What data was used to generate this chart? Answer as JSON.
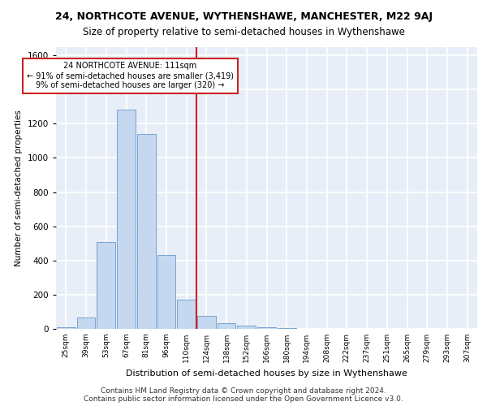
{
  "title1": "24, NORTHCOTE AVENUE, WYTHENSHAWE, MANCHESTER, M22 9AJ",
  "title2": "Size of property relative to semi-detached houses in Wythenshawe",
  "xlabel": "Distribution of semi-detached houses by size in Wythenshawe",
  "ylabel": "Number of semi-detached properties",
  "footnote1": "Contains HM Land Registry data © Crown copyright and database right 2024.",
  "footnote2": "Contains public sector information licensed under the Open Government Licence v3.0.",
  "annotation_line1": "24 NORTHCOTE AVENUE: 111sqm",
  "annotation_line2": "← 91% of semi-detached houses are smaller (3,419)",
  "annotation_line3": "9% of semi-detached houses are larger (320) →",
  "categories": [
    "25sqm",
    "39sqm",
    "53sqm",
    "67sqm",
    "81sqm",
    "96sqm",
    "110sqm",
    "124sqm",
    "138sqm",
    "152sqm",
    "166sqm",
    "180sqm",
    "194sqm",
    "208sqm",
    "222sqm",
    "237sqm",
    "251sqm",
    "265sqm",
    "279sqm",
    "293sqm",
    "307sqm"
  ],
  "values": [
    10,
    65,
    510,
    1280,
    1140,
    430,
    170,
    75,
    35,
    20,
    10,
    5,
    2,
    2,
    2,
    2,
    1,
    1,
    1,
    1,
    0
  ],
  "bar_color": "#c5d8f0",
  "bar_edge_color": "#6699cc",
  "bg_color": "#e8eef8",
  "grid_color": "#ffffff",
  "vline_color": "#cc2222",
  "box_edge_color": "#cc2222",
  "ylim_max": 1650,
  "yticks": [
    0,
    200,
    400,
    600,
    800,
    1000,
    1200,
    1400,
    1600
  ],
  "vline_pos": 6.5,
  "title1_fontsize": 9,
  "title2_fontsize": 8.5,
  "ylabel_fontsize": 7.5,
  "xlabel_fontsize": 8,
  "tick_fontsize": 7.5,
  "xtick_fontsize": 6.5,
  "footnote_fontsize": 6.5,
  "annot_fontsize": 7
}
